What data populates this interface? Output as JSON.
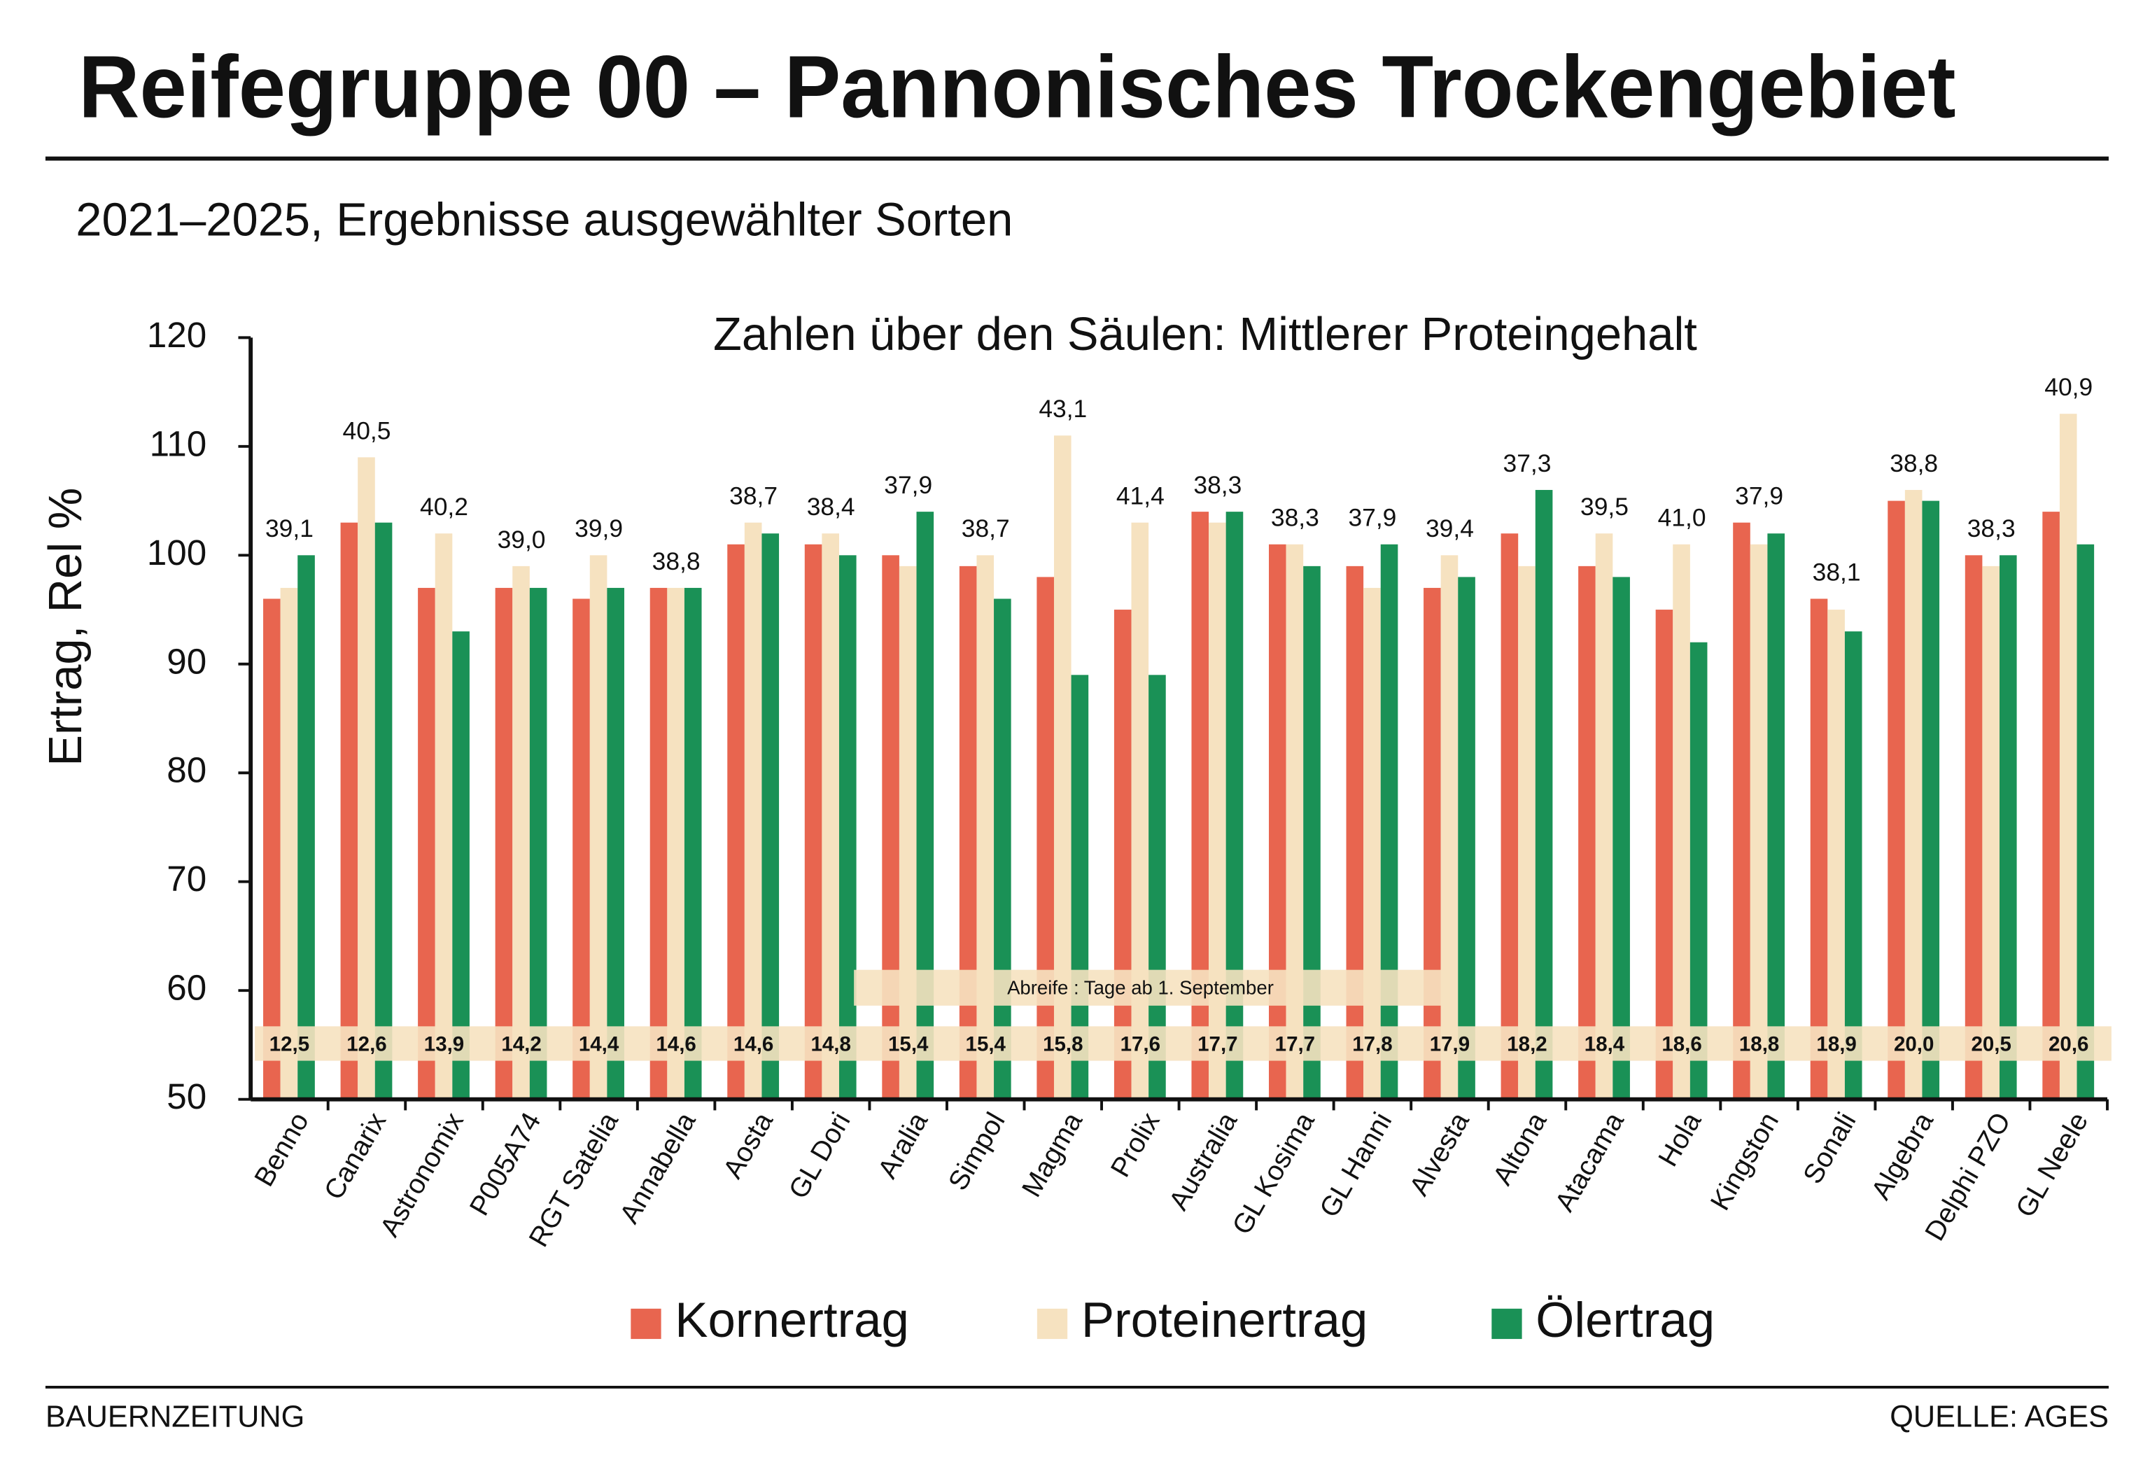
{
  "chart_data": {
    "type": "bar",
    "title": "Reifegruppe 00 – Pannonisches Trockengebiet",
    "subtitle": "2021–2025, Ergebnisse ausgewählter Sorten",
    "y_label": "Ertrag, Rel %",
    "ylim": [
      50,
      120
    ],
    "yticks": [
      50,
      60,
      70,
      80,
      90,
      100,
      110,
      120
    ],
    "categories": [
      "Benno",
      "Canarix",
      "Astronomix",
      "P005A74",
      "RGT Satelia",
      "Annabella",
      "Aosta",
      "GL Dori",
      "Aralia",
      "Simpol",
      "Magma",
      "Prolix",
      "Australia",
      "GL Kosima",
      "GL Hanni",
      "Alvesta",
      "Altona",
      "Atacama",
      "Hola",
      "Kingston",
      "Sonali",
      "Algebra",
      "Delphi PZO",
      "GL Neele"
    ],
    "series": [
      {
        "name": "Kornertrag",
        "color": "#e8654f",
        "values": [
          96,
          103,
          97,
          97,
          96,
          97,
          101,
          101,
          100,
          99,
          98,
          95,
          104,
          101,
          99,
          97,
          102,
          99,
          95,
          103,
          96,
          105,
          100,
          104
        ]
      },
      {
        "name": "Proteinertrag",
        "color": "#f6e2c0",
        "values": [
          97,
          109,
          102,
          99,
          100,
          97,
          103,
          102,
          99,
          100,
          111,
          103,
          103,
          101,
          97,
          100,
          99,
          102,
          101,
          101,
          95,
          106,
          99,
          113
        ]
      },
      {
        "name": "Ölertrag",
        "color": "#1a9156",
        "values": [
          100,
          103,
          93,
          97,
          97,
          97,
          102,
          100,
          104,
          96,
          89,
          89,
          104,
          99,
          101,
          98,
          106,
          98,
          92,
          102,
          93,
          105,
          100,
          101
        ]
      }
    ],
    "protein_content": {
      "label": "Zahlen über den Säulen: Mittlerer Proteingehalt",
      "values": [
        39.1,
        40.5,
        40.2,
        39.0,
        39.9,
        38.8,
        38.7,
        38.4,
        37.9,
        38.7,
        43.1,
        41.4,
        38.3,
        38.3,
        37.9,
        39.4,
        37.3,
        39.5,
        41.0,
        37.9,
        38.1,
        38.8,
        38.3,
        40.9
      ],
      "value_labels": [
        "39,1",
        "40,5",
        "40,2",
        "39,0",
        "39,9",
        "38,8",
        "38,7",
        "38,4",
        "37,9",
        "38,7",
        "43,1",
        "41,4",
        "38,3",
        "38,3",
        "37,9",
        "39,4",
        "37,3",
        "39,5",
        "41,0",
        "37,9",
        "38,1",
        "38,8",
        "38,3",
        "40,9"
      ]
    },
    "maturity_days": {
      "label": "Abreife :  Tage ab 1. September",
      "values": [
        12.5,
        12.6,
        13.9,
        14.2,
        14.4,
        14.6,
        14.6,
        14.8,
        15.4,
        15.4,
        15.8,
        17.6,
        17.7,
        17.7,
        17.8,
        17.9,
        18.2,
        18.4,
        18.6,
        18.8,
        18.9,
        20.0,
        20.5,
        20.6
      ],
      "value_labels": [
        "12,5",
        "12,6",
        "13,9",
        "14,2",
        "14,4",
        "14,6",
        "14,6",
        "14,8",
        "15,4",
        "15,4",
        "15,8",
        "17,6",
        "17,7",
        "17,7",
        "17,8",
        "17,9",
        "18,2",
        "18,4",
        "18,6",
        "18,8",
        "18,9",
        "20,0",
        "20,5",
        "20,6"
      ]
    },
    "source_left": "BAUERNZEITUNG",
    "source_right": "QUELLE: AGES"
  }
}
